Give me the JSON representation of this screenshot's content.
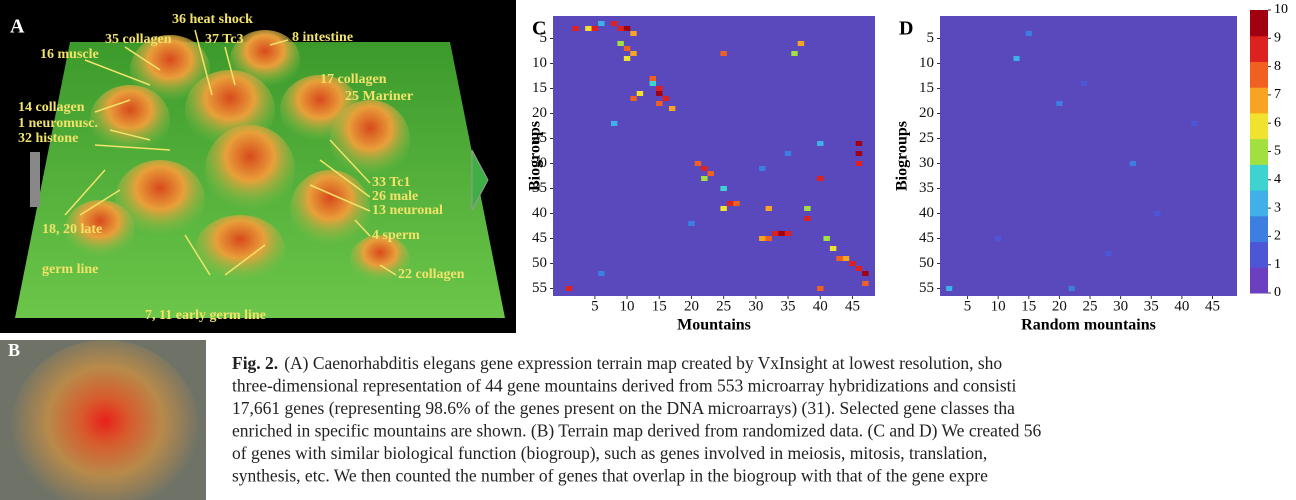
{
  "panel_a": {
    "label": "A",
    "annotations": [
      "35 collagen",
      "36 heat shock",
      "37 Tc3",
      "8 intestine",
      "16 muscle",
      "17 collagen",
      "25 Mariner",
      "14 collagen",
      "1 neuromusc.",
      "32 histone",
      "33 Tc1",
      "26 male",
      "13 neuronal",
      "4 sperm",
      "18, 20 late",
      "germ line",
      "22 collagen",
      "7, 11 early germ line"
    ]
  },
  "panel_b": {
    "label": "B"
  },
  "chart_data": [
    {
      "type": "heatmap",
      "panel": "C",
      "x_label": "Mountains",
      "y_label": "Biogroups",
      "xlim": [
        -1.5,
        48.5
      ],
      "ylim": [
        0.5,
        56.5
      ],
      "xticks": [
        5,
        10,
        15,
        20,
        25,
        30,
        35,
        40,
        45
      ],
      "yticks": [
        5,
        10,
        15,
        20,
        25,
        30,
        35,
        40,
        45,
        50,
        55
      ],
      "background": "#5a48bd",
      "cells": [
        [
          2,
          3,
          9
        ],
        [
          4,
          3,
          6
        ],
        [
          5,
          3,
          9
        ],
        [
          6,
          2,
          3
        ],
        [
          8,
          2,
          9
        ],
        [
          9,
          3,
          9
        ],
        [
          10,
          3,
          10
        ],
        [
          11,
          4,
          7
        ],
        [
          9,
          6,
          5
        ],
        [
          10,
          7,
          8
        ],
        [
          11,
          8,
          7
        ],
        [
          10,
          9,
          6
        ],
        [
          14,
          13,
          8
        ],
        [
          14,
          14,
          4
        ],
        [
          15,
          15,
          9
        ],
        [
          15,
          16,
          10
        ],
        [
          16,
          17,
          9
        ],
        [
          15,
          18,
          8
        ],
        [
          17,
          19,
          7
        ],
        [
          11,
          17,
          8
        ],
        [
          12,
          16,
          6
        ],
        [
          21,
          30,
          8
        ],
        [
          22,
          31,
          9
        ],
        [
          23,
          32,
          8
        ],
        [
          22,
          33,
          5
        ],
        [
          25,
          35,
          4
        ],
        [
          26,
          38,
          9
        ],
        [
          27,
          38,
          8
        ],
        [
          25,
          39,
          6
        ],
        [
          33,
          44,
          9
        ],
        [
          34,
          44,
          10
        ],
        [
          35,
          44,
          9
        ],
        [
          31,
          45,
          7
        ],
        [
          32,
          45,
          8
        ],
        [
          41,
          45,
          5
        ],
        [
          42,
          47,
          6
        ],
        [
          43,
          49,
          8
        ],
        [
          44,
          49,
          7
        ],
        [
          45,
          50,
          9
        ],
        [
          46,
          51,
          9
        ],
        [
          47,
          52,
          10
        ],
        [
          47,
          54,
          8
        ],
        [
          46,
          26,
          10
        ],
        [
          46,
          28,
          10
        ],
        [
          46,
          30,
          9
        ],
        [
          40,
          33,
          9
        ],
        [
          40,
          26,
          3
        ],
        [
          36,
          8,
          5
        ],
        [
          37,
          6,
          7
        ],
        [
          25,
          8,
          8
        ],
        [
          1,
          55,
          9
        ],
        [
          40,
          55,
          8
        ],
        [
          32,
          39,
          7
        ],
        [
          38,
          39,
          5
        ],
        [
          38,
          41,
          9
        ],
        [
          8,
          22,
          3
        ],
        [
          31,
          31,
          2
        ],
        [
          35,
          28,
          2
        ],
        [
          20,
          42,
          2
        ],
        [
          6,
          52,
          2
        ]
      ]
    },
    {
      "type": "heatmap",
      "panel": "D",
      "x_label": "Random mountains",
      "y_label": "Biogroups",
      "xlim": [
        0.5,
        49
      ],
      "ylim": [
        0.5,
        56.5
      ],
      "xticks": [
        5,
        10,
        15,
        20,
        25,
        30,
        35,
        40,
        45
      ],
      "yticks": [
        5,
        10,
        15,
        20,
        25,
        30,
        35,
        40,
        45,
        50,
        55
      ],
      "background": "#5a48bd",
      "cells": [
        [
          13,
          9,
          3
        ],
        [
          15,
          4,
          2
        ],
        [
          20,
          18,
          2
        ],
        [
          32,
          30,
          2
        ],
        [
          24,
          14,
          1
        ],
        [
          36,
          40,
          1
        ],
        [
          10,
          45,
          1
        ],
        [
          28,
          48,
          1
        ],
        [
          42,
          22,
          1
        ],
        [
          2,
          55,
          3
        ],
        [
          22,
          55,
          2
        ]
      ],
      "colorbar": {
        "clim": [
          0,
          10
        ],
        "cticks": [
          0,
          1,
          2,
          3,
          4,
          5,
          6,
          7,
          8,
          9,
          10
        ],
        "colormap": [
          "#6b3fbf",
          "#4d56d6",
          "#3c7fe0",
          "#3fb0e8",
          "#3ed3cf",
          "#a2e040",
          "#f2e230",
          "#f8a422",
          "#f06020",
          "#dd2020",
          "#a00010"
        ]
      }
    }
  ],
  "caption": {
    "fig_label": "Fig. 2.",
    "lines": [
      "(A) Caenorhabditis elegans gene expression terrain map created by VxInsight at lowest resolution, sho",
      "three-dimensional representation of 44 gene mountains derived from 553 microarray hybridizations and consisti",
      "17,661 genes (representing 98.6% of the genes present on the DNA microarrays) (31). Selected gene classes tha",
      "enriched in specific mountains are shown. (B) Terrain map derived from randomized data. (C and D) We created 56",
      "of genes with similar biological function (biogroup), such as genes involved in meiosis, mitosis, translation,",
      "synthesis, etc. We then counted the number of genes that overlap in the biogroup with that of the gene expre"
    ]
  }
}
